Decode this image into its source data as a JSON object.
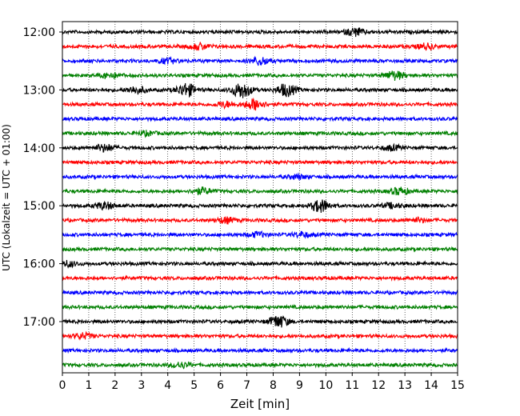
{
  "chart_data": {
    "type": "line",
    "title": "",
    "xlabel": "Zeit  [min]",
    "ylabel": "UTC (Lokalzeit = UTC + 01:00)",
    "xlim": [
      0,
      15
    ],
    "x_ticks": [
      "0",
      "1",
      "2",
      "3",
      "4",
      "5",
      "6",
      "7",
      "8",
      "9",
      "10",
      "11",
      "12",
      "13",
      "14",
      "15"
    ],
    "y_tick_labels": [
      "12:00",
      "13:00",
      "14:00",
      "15:00",
      "16:00",
      "17:00"
    ],
    "trace_interval_minutes": 15,
    "colors": [
      "#000000",
      "#ff0000",
      "#0000ff",
      "#008000"
    ],
    "grid": "vertical dotted",
    "series": [
      {
        "start": "12:00",
        "color": "#000000",
        "events": [
          {
            "t": 11.1,
            "a": 0.5
          }
        ]
      },
      {
        "start": "12:15",
        "color": "#ff0000",
        "events": [
          {
            "t": 5.2,
            "a": 0.4
          },
          {
            "t": 13.8,
            "a": 0.35
          }
        ]
      },
      {
        "start": "12:30",
        "color": "#0000ff",
        "events": [
          {
            "t": 7.5,
            "a": 0.5
          },
          {
            "t": 4.0,
            "a": 0.3
          }
        ]
      },
      {
        "start": "12:45",
        "color": "#008000",
        "events": [
          {
            "t": 1.8,
            "a": 0.35
          },
          {
            "t": 12.6,
            "a": 0.55
          }
        ]
      },
      {
        "start": "13:00",
        "color": "#000000",
        "events": [
          {
            "t": 4.7,
            "a": 0.85
          },
          {
            "t": 6.8,
            "a": 1.0
          },
          {
            "t": 8.5,
            "a": 0.8
          },
          {
            "t": 2.8,
            "a": 0.45
          }
        ]
      },
      {
        "start": "13:15",
        "color": "#ff0000",
        "events": [
          {
            "t": 7.3,
            "a": 0.7
          },
          {
            "t": 6.2,
            "a": 0.35
          }
        ]
      },
      {
        "start": "13:30",
        "color": "#0000ff",
        "events": []
      },
      {
        "start": "13:45",
        "color": "#008000",
        "events": [
          {
            "t": 3.2,
            "a": 0.25
          }
        ]
      },
      {
        "start": "14:00",
        "color": "#000000",
        "events": [
          {
            "t": 1.6,
            "a": 0.45
          },
          {
            "t": 12.5,
            "a": 0.3
          }
        ]
      },
      {
        "start": "14:15",
        "color": "#ff0000",
        "events": []
      },
      {
        "start": "14:30",
        "color": "#0000ff",
        "events": [
          {
            "t": 8.9,
            "a": 0.25
          }
        ]
      },
      {
        "start": "14:45",
        "color": "#008000",
        "events": [
          {
            "t": 5.3,
            "a": 0.4
          },
          {
            "t": 12.8,
            "a": 0.45
          }
        ]
      },
      {
        "start": "15:00",
        "color": "#000000",
        "events": [
          {
            "t": 1.6,
            "a": 0.45
          },
          {
            "t": 9.8,
            "a": 0.8
          },
          {
            "t": 12.5,
            "a": 0.3
          }
        ]
      },
      {
        "start": "15:15",
        "color": "#ff0000",
        "events": [
          {
            "t": 6.2,
            "a": 0.35
          },
          {
            "t": 13.5,
            "a": 0.25
          }
        ]
      },
      {
        "start": "15:30",
        "color": "#0000ff",
        "events": [
          {
            "t": 7.4,
            "a": 0.3
          },
          {
            "t": 9.1,
            "a": 0.3
          }
        ]
      },
      {
        "start": "15:45",
        "color": "#008000",
        "events": []
      },
      {
        "start": "16:00",
        "color": "#000000",
        "events": [
          {
            "t": 0.2,
            "a": 0.35
          }
        ]
      },
      {
        "start": "16:15",
        "color": "#ff0000",
        "events": []
      },
      {
        "start": "16:30",
        "color": "#0000ff",
        "events": []
      },
      {
        "start": "16:45",
        "color": "#008000",
        "events": []
      },
      {
        "start": "17:00",
        "color": "#000000",
        "events": [
          {
            "t": 8.2,
            "a": 0.8
          }
        ]
      },
      {
        "start": "17:15",
        "color": "#ff0000",
        "events": [
          {
            "t": 0.8,
            "a": 0.35
          }
        ]
      },
      {
        "start": "17:30",
        "color": "#0000ff",
        "events": []
      },
      {
        "start": "17:45",
        "color": "#008000",
        "events": [
          {
            "t": 4.5,
            "a": 0.35
          }
        ]
      }
    ]
  }
}
